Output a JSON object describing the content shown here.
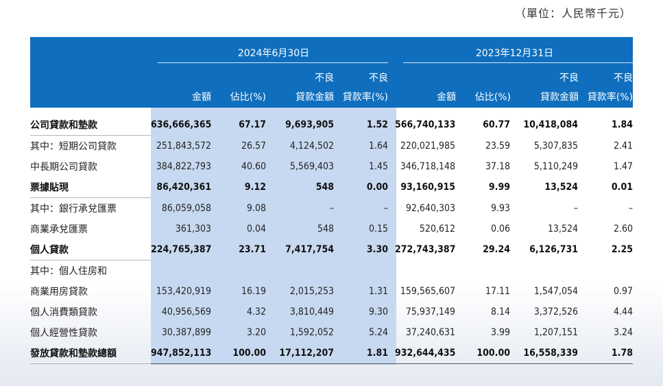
{
  "unit_label": "（單位：人民幣千元）",
  "periods": [
    "2024年6月30日",
    "2023年12月31日"
  ],
  "columns": {
    "amount": "金額",
    "share": "佔比(%)",
    "npl_amount_top": "不良",
    "npl_amount_bottom": "貸款金額",
    "npl_ratio_top": "不良",
    "npl_ratio_bottom": "貸款率(%)"
  },
  "rows": [
    {
      "label": "公司貸款和墊款",
      "bold": true,
      "indent": 0,
      "v": [
        "636,666,365",
        "67.17",
        "9,693,905",
        "1.52",
        "566,740,133",
        "60.77",
        "10,418,084",
        "1.84"
      ]
    },
    {
      "label": "其中：短期公司貸款",
      "bold": false,
      "indent": 0,
      "v": [
        "251,843,572",
        "26.57",
        "4,124,502",
        "1.64",
        "220,021,985",
        "23.59",
        "5,307,835",
        "2.41"
      ]
    },
    {
      "label": "中長期公司貸款",
      "bold": false,
      "indent": 2,
      "v": [
        "384,822,793",
        "40.60",
        "5,569,403",
        "1.45",
        "346,718,148",
        "37.18",
        "5,110,249",
        "1.47"
      ]
    },
    {
      "label": "票據貼現",
      "bold": true,
      "indent": 0,
      "v": [
        "86,420,361",
        "9.12",
        "548",
        "0.00",
        "93,160,915",
        "9.99",
        "13,524",
        "0.01"
      ]
    },
    {
      "label": "其中：銀行承兌匯票",
      "bold": false,
      "indent": 0,
      "v": [
        "86,059,058",
        "9.08",
        "–",
        "–",
        "92,640,303",
        "9.93",
        "–",
        "–"
      ]
    },
    {
      "label": "商業承兌匯票",
      "bold": false,
      "indent": 2,
      "v": [
        "361,303",
        "0.04",
        "548",
        "0.15",
        "520,612",
        "0.06",
        "13,524",
        "2.60"
      ]
    },
    {
      "label": "個人貸款",
      "bold": true,
      "indent": 0,
      "v": [
        "224,765,387",
        "23.71",
        "7,417,754",
        "3.30",
        "272,743,387",
        "29.24",
        "6,126,731",
        "2.25"
      ]
    },
    {
      "label": "其中：個人住房和",
      "bold": false,
      "indent": 0,
      "v": [
        "",
        "",
        "",
        "",
        "",
        "",
        "",
        ""
      ]
    },
    {
      "label": "商業用房貸款",
      "bold": false,
      "indent": 2,
      "v": [
        "153,420,919",
        "16.19",
        "2,015,253",
        "1.31",
        "159,565,607",
        "17.11",
        "1,547,054",
        "0.97"
      ]
    },
    {
      "label": "個人消費類貸款",
      "bold": false,
      "indent": 2,
      "v": [
        "40,956,569",
        "4.32",
        "3,810,449",
        "9.30",
        "75,937,149",
        "8.14",
        "3,372,526",
        "4.44"
      ]
    },
    {
      "label": "個人經營性貸款",
      "bold": false,
      "indent": 2,
      "v": [
        "30,387,899",
        "3.20",
        "1,592,052",
        "5.24",
        "37,240,631",
        "3.99",
        "1,207,151",
        "3.24"
      ]
    },
    {
      "label": "發放貸款和墊款總額",
      "bold": true,
      "total": true,
      "indent": 0,
      "v": [
        "947,852,113",
        "100.00",
        "17,112,207",
        "1.81",
        "932,644,435",
        "100.00",
        "16,558,339",
        "1.78"
      ]
    }
  ],
  "colors": {
    "header_bg": "#0f6fbe",
    "highlight": "#c7d9f0"
  }
}
